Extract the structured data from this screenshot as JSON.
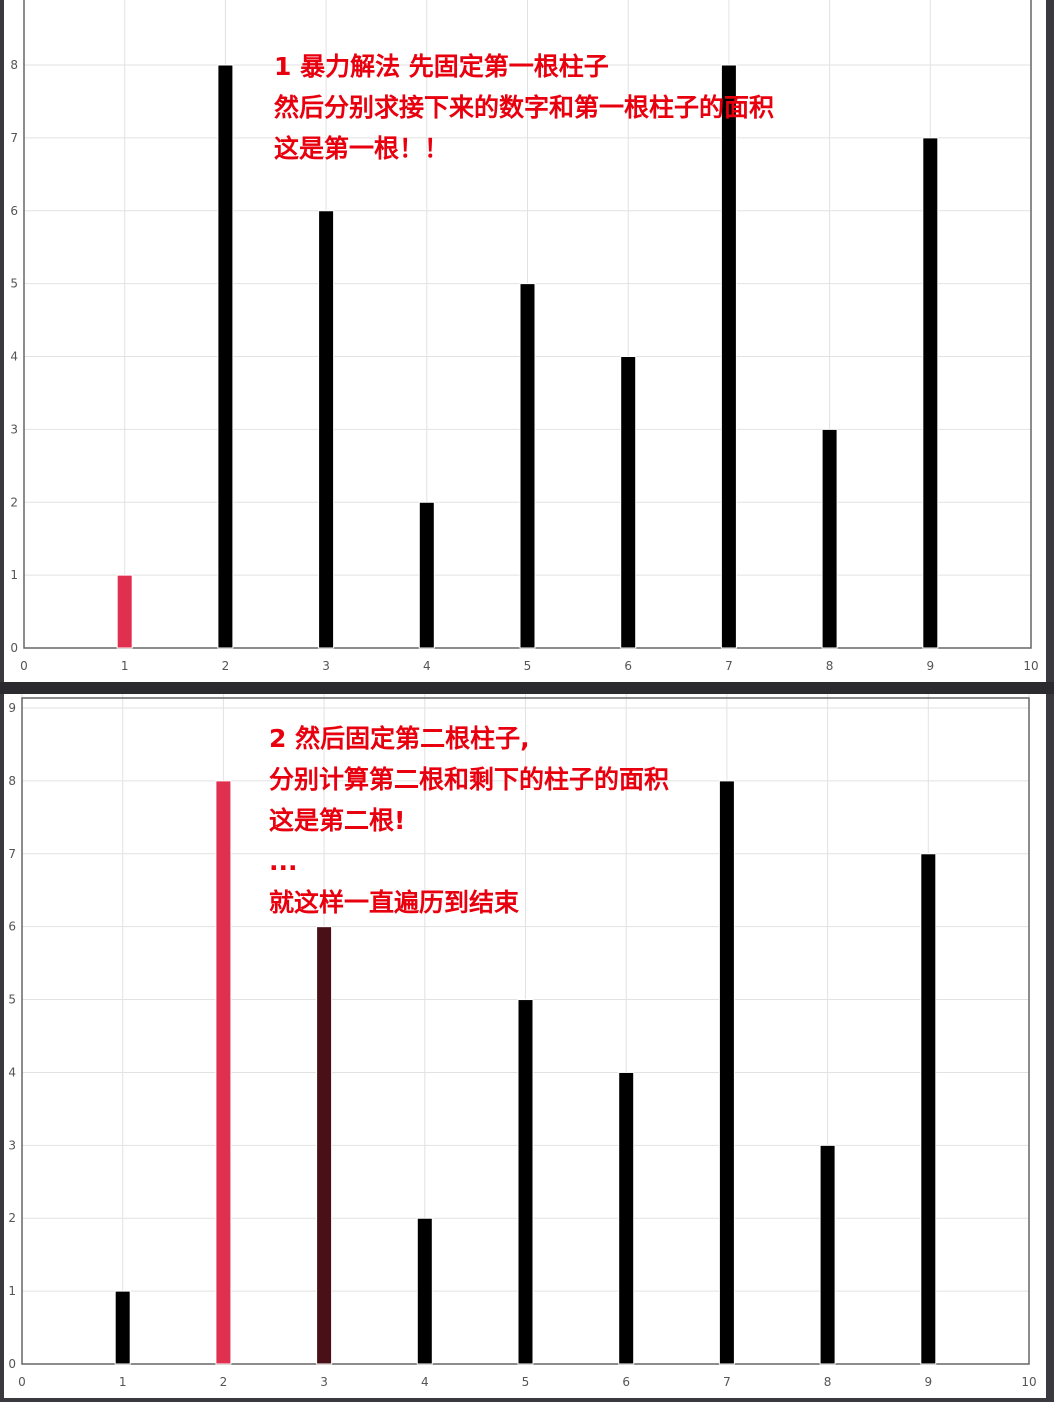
{
  "panels": [
    {
      "annotation": [
        "1 暴力解法 先固定第一根柱子",
        "然后分别求接下来的数字和第一根柱子的面积",
        "这是第一根！！"
      ],
      "highlight": [
        {
          "x": 1,
          "color": "#e03050"
        }
      ]
    },
    {
      "annotation": [
        "2 然后固定第二根柱子,",
        "分别计算第二根和剩下的柱子的面积",
        "这是第二根!",
        "...",
        "就这样一直遍历到结束"
      ],
      "highlight": [
        {
          "x": 2,
          "color": "#e03050"
        },
        {
          "x": 3,
          "color": "#4a1018"
        }
      ]
    }
  ],
  "chart_data": [
    {
      "type": "bar",
      "x": [
        1,
        2,
        3,
        4,
        5,
        6,
        7,
        8,
        9
      ],
      "values": [
        1,
        8,
        6,
        2,
        5,
        4,
        8,
        3,
        7
      ],
      "xlim": [
        0,
        10
      ],
      "ylim": [
        0,
        8
      ],
      "xticks": [
        0,
        1,
        2,
        3,
        4,
        5,
        6,
        7,
        8,
        9,
        10
      ],
      "yticks": [
        0,
        1,
        2,
        3,
        4,
        5,
        6,
        7,
        8
      ],
      "grid": true,
      "bar_color": "#000000"
    },
    {
      "type": "bar",
      "x": [
        1,
        2,
        3,
        4,
        5,
        6,
        7,
        8,
        9
      ],
      "values": [
        1,
        8,
        6,
        2,
        5,
        4,
        8,
        3,
        7
      ],
      "xlim": [
        0,
        10
      ],
      "ylim": [
        0,
        9
      ],
      "xticks": [
        0,
        1,
        2,
        3,
        4,
        5,
        6,
        7,
        8,
        9,
        10
      ],
      "yticks": [
        0,
        1,
        2,
        3,
        4,
        5,
        6,
        7,
        8,
        9
      ],
      "grid": true,
      "bar_color": "#000000"
    }
  ]
}
